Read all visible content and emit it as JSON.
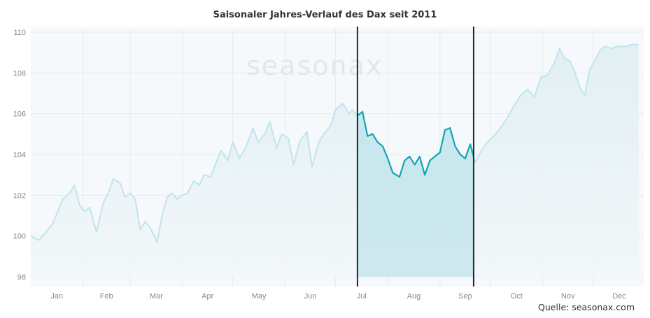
{
  "chart_data": {
    "type": "area",
    "title": "Saisonaler Jahres-Verlauf des Dax seit 2011",
    "xlabel": "",
    "ylabel": "",
    "ylim": [
      98,
      110
    ],
    "yticks": [
      "98",
      "100",
      "102",
      "104",
      "106",
      "108",
      "110"
    ],
    "months": [
      "Jan",
      "Feb",
      "Mar",
      "Apr",
      "May",
      "Jun",
      "Jul",
      "Aug",
      "Sep",
      "Oct",
      "Nov",
      "Dec"
    ],
    "grid": true,
    "watermark": "seasonax",
    "source": "Quelle: seasonax.com",
    "highlight": {
      "start_day": 195,
      "end_day": 264
    },
    "series": [
      {
        "name": "",
        "x": [
          1,
          3,
          6,
          10,
          14,
          17,
          20,
          24,
          27,
          30,
          33,
          36,
          40,
          44,
          47,
          50,
          54,
          57,
          60,
          63,
          66,
          69,
          72,
          76,
          79,
          82,
          85,
          88,
          91,
          94,
          98,
          101,
          104,
          108,
          111,
          114,
          118,
          121,
          125,
          129,
          133,
          136,
          140,
          143,
          147,
          150,
          154,
          157,
          161,
          165,
          168,
          172,
          175,
          179,
          182,
          186,
          188,
          190,
          192,
          195,
          198,
          201,
          204,
          207,
          210,
          213,
          216,
          220,
          223,
          226,
          229,
          232,
          235,
          238,
          241,
          244,
          247,
          250,
          253,
          256,
          259,
          262,
          265,
          268,
          272,
          276,
          280,
          284,
          288,
          292,
          296,
          300,
          304,
          308,
          312,
          315,
          318,
          321,
          324,
          327,
          330,
          333,
          336,
          339,
          342,
          346,
          349,
          352,
          355,
          358,
          362
        ],
        "values": [
          100.0,
          99.9,
          99.8,
          100.2,
          100.6,
          101.2,
          101.8,
          102.1,
          102.5,
          101.5,
          101.2,
          101.4,
          100.2,
          101.6,
          102.1,
          102.8,
          102.6,
          101.9,
          102.1,
          101.8,
          100.3,
          100.7,
          100.4,
          99.7,
          101.0,
          101.9,
          102.1,
          101.8,
          102.0,
          102.1,
          102.7,
          102.5,
          103.0,
          102.9,
          103.6,
          104.2,
          103.7,
          104.6,
          103.8,
          104.4,
          105.3,
          104.6,
          105.0,
          105.6,
          104.3,
          105.0,
          104.8,
          103.5,
          104.7,
          105.1,
          103.4,
          104.6,
          105.0,
          105.4,
          106.2,
          106.5,
          106.3,
          106.0,
          106.2,
          105.9,
          106.1,
          104.9,
          105.0,
          104.6,
          104.4,
          103.8,
          103.1,
          102.9,
          103.7,
          103.9,
          103.5,
          103.9,
          103.0,
          103.7,
          103.9,
          104.1,
          105.2,
          105.3,
          104.4,
          104.0,
          103.8,
          104.5,
          103.6,
          104.1,
          104.6,
          104.9,
          105.3,
          105.8,
          106.4,
          106.9,
          107.2,
          106.8,
          107.8,
          107.9,
          108.5,
          109.2,
          108.7,
          108.6,
          108.1,
          107.3,
          106.9,
          108.2,
          108.6,
          109.1,
          109.3,
          109.2,
          109.3,
          109.3,
          109.3,
          109.4,
          109.4
        ]
      }
    ]
  }
}
